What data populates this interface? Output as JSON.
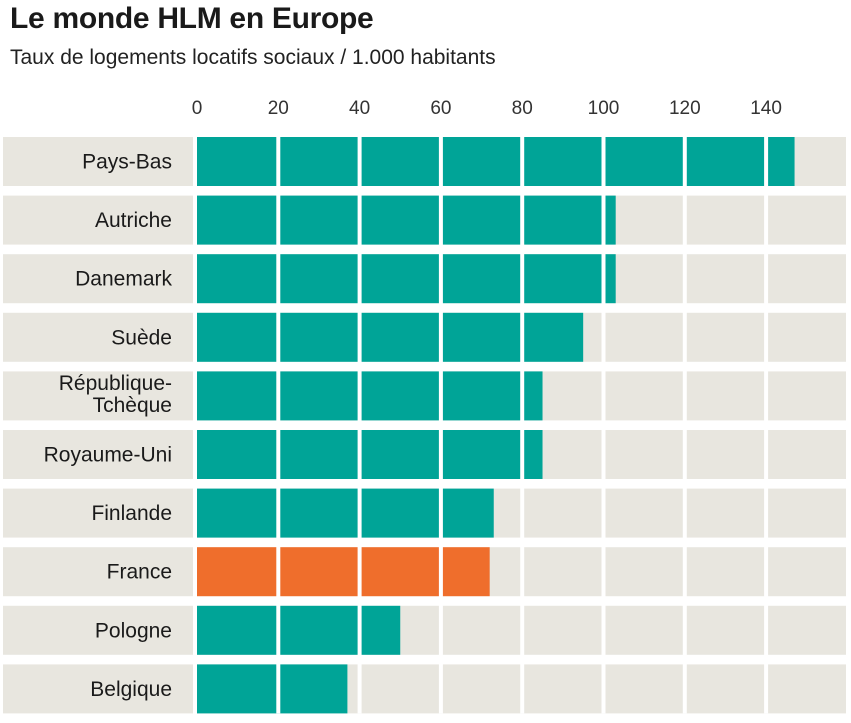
{
  "header": {
    "title": "Le monde HLM en Europe",
    "subtitle": "Taux de logements locatifs sociaux / 1.000 habitants"
  },
  "colors": {
    "bar": "#00a497",
    "highlight": "#ef6e2c",
    "row_background": "#e8e6df",
    "divider": "#ffffff"
  },
  "chart_data": {
    "type": "bar",
    "orientation": "horizontal",
    "title": "Le monde HLM en Europe",
    "subtitle": "Taux de logements locatifs sociaux / 1.000 habitants",
    "xlim": [
      0,
      160
    ],
    "x_ticks": [
      0,
      20,
      40,
      60,
      80,
      100,
      120,
      140
    ],
    "axis_position": "top",
    "grid": true,
    "highlighted_category": "France",
    "categories": [
      "Pays-Bas",
      "Autriche",
      "Danemark",
      "Suède",
      "République-Tchèque",
      "Royaume-Uni",
      "Finlande",
      "France",
      "Pologne",
      "Belgique"
    ],
    "category_lines": [
      [
        "Pays-Bas"
      ],
      [
        "Autriche"
      ],
      [
        "Danemark"
      ],
      [
        "Suède"
      ],
      [
        "République-",
        "Tchèque"
      ],
      [
        "Royaume-Uni"
      ],
      [
        "Finlande"
      ],
      [
        "France"
      ],
      [
        "Pologne"
      ],
      [
        "Belgique"
      ]
    ],
    "values": [
      147,
      103,
      103,
      95,
      85,
      85,
      73,
      72,
      50,
      37
    ]
  }
}
